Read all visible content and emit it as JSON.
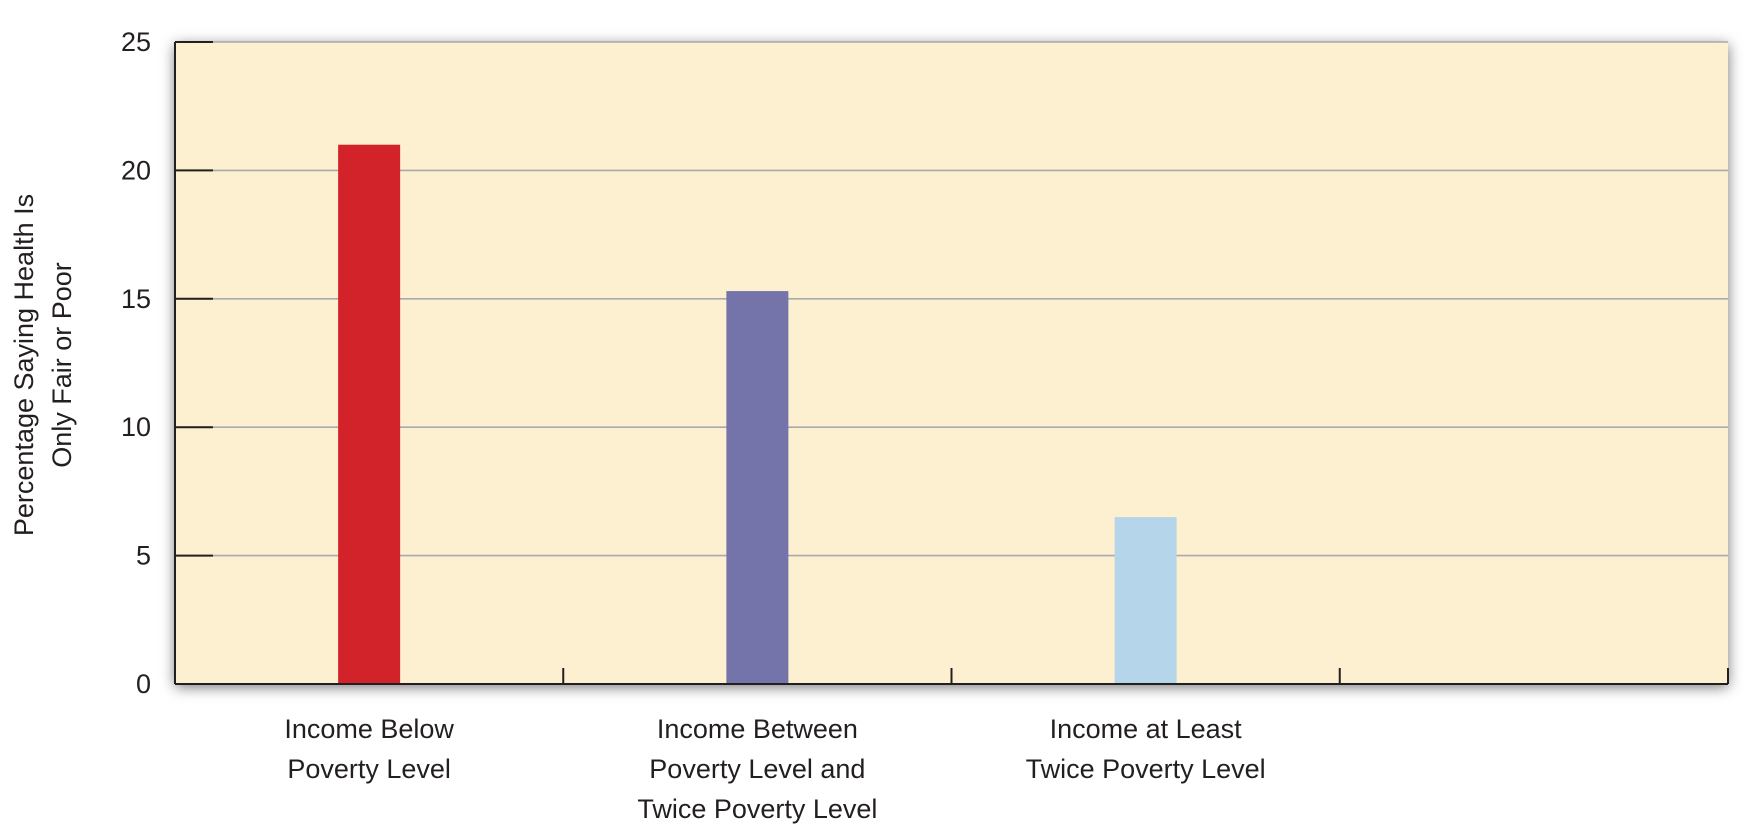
{
  "chart_data": {
    "type": "bar",
    "categories": [
      [
        "Income Below",
        "Poverty Level"
      ],
      [
        "Income Between",
        "Poverty Level and",
        "Twice Poverty Level"
      ],
      [
        "Income at Least",
        "Twice Poverty Level"
      ],
      []
    ],
    "values": [
      21,
      15.3,
      6.5,
      null
    ],
    "bar_colors": [
      "#d2232a",
      "#7473aa",
      "#b5d6ea"
    ],
    "ylabel": [
      "Percentage Saying Health Is",
      "Only Fair or Poor"
    ],
    "ylim": [
      0,
      25
    ],
    "yticks": [
      0,
      5,
      10,
      15,
      20,
      25
    ],
    "grid": true,
    "plot_background": "#fdf0d0",
    "grid_color": "#a7a9ac",
    "axis_color": "#231f20"
  }
}
